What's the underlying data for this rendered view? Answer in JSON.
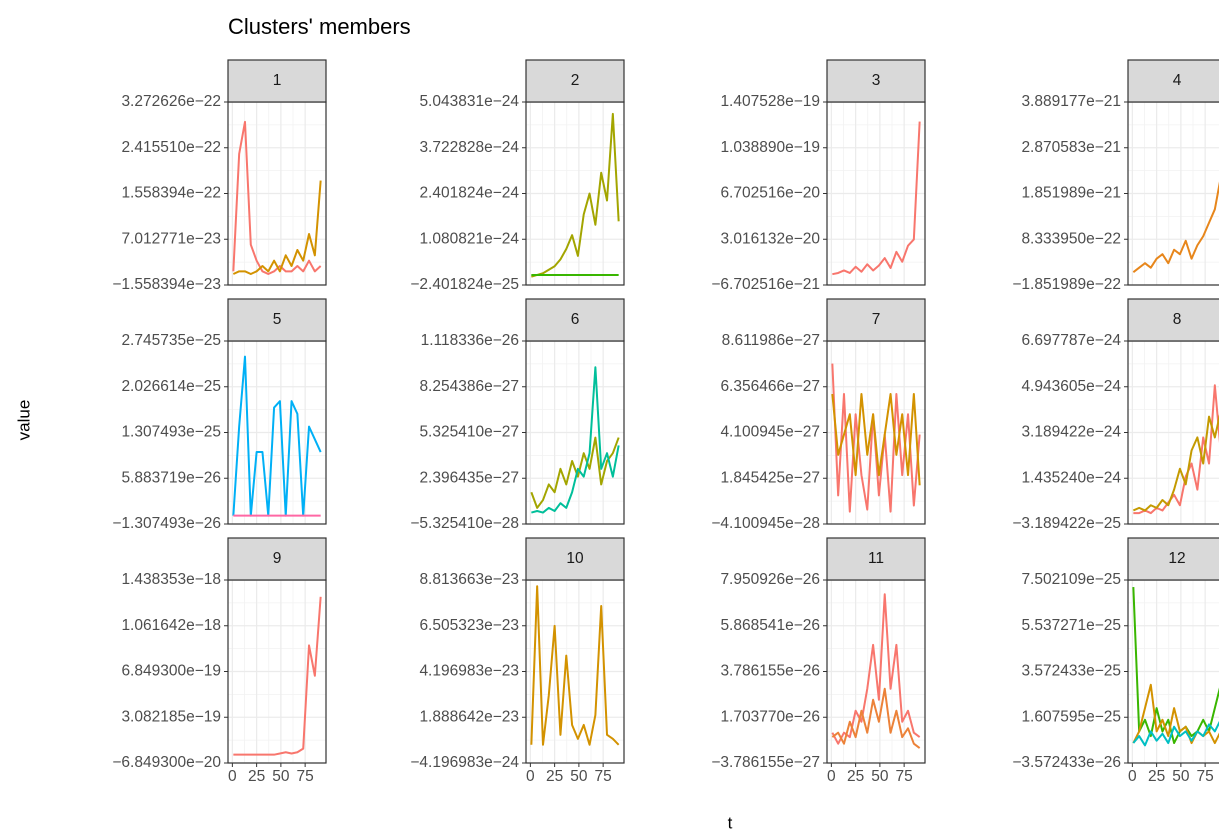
{
  "title": "Clusters' members",
  "x_label": "t",
  "y_label": "value",
  "chart_data": [
    {
      "type": "line",
      "title": "1",
      "x": [
        1,
        7,
        13,
        19,
        25,
        31,
        37,
        43,
        49,
        55,
        61,
        67,
        73,
        79,
        85,
        91
      ],
      "xlim": [
        -4.5,
        96.5
      ],
      "xticks": [
        0,
        25,
        50,
        75
      ],
      "ylim": [
        -1.558394e-23,
        3.272626e-22
      ],
      "yticks": [
        {
          "value": -1.558394e-23,
          "label": "−1.558394e−23"
        },
        {
          "value": 7.012771e-23,
          "label": "7.012771e−23"
        },
        {
          "value": 1.558394e-22,
          "label": "1.558394e−22"
        },
        {
          "value": 2.41551e-22,
          "label": "2.415510e−22"
        },
        {
          "value": 3.272626e-22,
          "label": "3.272626e−22"
        }
      ],
      "series": [
        {
          "color": "#F8766D",
          "values": [
            1e-23,
            2.3e-22,
            2.9e-22,
            6e-23,
            3e-23,
            1e-23,
            5e-24,
            1e-23,
            2e-23,
            1e-23,
            1e-23,
            2e-23,
            1e-23,
            3e-23,
            1e-23,
            2e-23
          ]
        },
        {
          "color": "#D39200",
          "values": [
            5e-24,
            1e-23,
            1e-23,
            5e-24,
            1e-23,
            2e-23,
            1e-23,
            3e-23,
            1e-23,
            4e-23,
            2e-23,
            5e-23,
            3e-23,
            8e-23,
            4e-23,
            1.8e-22
          ]
        }
      ]
    },
    {
      "type": "line",
      "title": "2",
      "x": [
        1,
        7,
        13,
        19,
        25,
        31,
        37,
        43,
        49,
        55,
        61,
        67,
        73,
        79,
        85,
        91
      ],
      "xlim": [
        -4.5,
        96.5
      ],
      "xticks": [
        0,
        25,
        50,
        75
      ],
      "ylim": [
        -2.401824e-25,
        5.043831e-24
      ],
      "yticks": [
        {
          "value": -2.401824e-25,
          "label": "−2.401824e−25"
        },
        {
          "value": 1.080821e-24,
          "label": "1.080821e−24"
        },
        {
          "value": 2.401824e-24,
          "label": "2.401824e−24"
        },
        {
          "value": 3.722828e-24,
          "label": "3.722828e−24"
        },
        {
          "value": 5.043831e-24,
          "label": "5.043831e−24"
        }
      ],
      "series": [
        {
          "color": "#A3A500",
          "values": [
            0,
            5e-26,
            1e-25,
            2e-25,
            3e-25,
            5e-25,
            8e-25,
            1.2e-24,
            6e-25,
            1.8e-24,
            2.4e-24,
            1.5e-24,
            3e-24,
            2.2e-24,
            4.7e-24,
            1.6e-24
          ]
        },
        {
          "color": "#39B600",
          "values": [
            5e-26,
            5e-26,
            5e-26,
            5e-26,
            5e-26,
            5e-26,
            5e-26,
            5e-26,
            5e-26,
            5e-26,
            5e-26,
            5e-26,
            5e-26,
            5e-26,
            5e-26,
            5e-26
          ]
        }
      ]
    },
    {
      "type": "line",
      "title": "3",
      "x": [
        1,
        7,
        13,
        19,
        25,
        31,
        37,
        43,
        49,
        55,
        61,
        67,
        73,
        79,
        85,
        91
      ],
      "xlim": [
        -4.5,
        96.5
      ],
      "xticks": [
        0,
        25,
        50,
        75
      ],
      "ylim": [
        -6.702516e-21,
        1.407528e-19
      ],
      "yticks": [
        {
          "value": -6.702516e-21,
          "label": "−6.702516e−21"
        },
        {
          "value": 3.016132e-20,
          "label": "3.016132e−20"
        },
        {
          "value": 6.702516e-20,
          "label": "6.702516e−20"
        },
        {
          "value": 1.03889e-19,
          "label": "1.038890e−19"
        },
        {
          "value": 1.407528e-19,
          "label": "1.407528e−19"
        }
      ],
      "series": [
        {
          "color": "#F8766D",
          "values": [
            2e-21,
            3e-21,
            5e-21,
            3e-21,
            8e-21,
            4e-21,
            1e-20,
            5e-21,
            9e-21,
            1.5e-20,
            7e-21,
            2e-20,
            1.2e-20,
            2.5e-20,
            3e-20,
            1.25e-19
          ]
        }
      ]
    },
    {
      "type": "line",
      "title": "4",
      "x": [
        1,
        7,
        13,
        19,
        25,
        31,
        37,
        43,
        49,
        55,
        61,
        67,
        73,
        79,
        85,
        91
      ],
      "xlim": [
        -4.5,
        96.5
      ],
      "xticks": [
        0,
        25,
        50,
        75
      ],
      "ylim": [
        -1.851989e-22,
        3.889177e-21
      ],
      "yticks": [
        {
          "value": -1.851989e-22,
          "label": "−1.851989e−22"
        },
        {
          "value": 8.33395e-22,
          "label": "8.333950e−22"
        },
        {
          "value": 1.851989e-21,
          "label": "1.851989e−21"
        },
        {
          "value": 2.870583e-21,
          "label": "2.870583e−21"
        },
        {
          "value": 3.889177e-21,
          "label": "3.889177e−21"
        }
      ],
      "series": [
        {
          "color": "#E7861B",
          "values": [
            1e-22,
            2e-22,
            3e-22,
            2e-22,
            4e-22,
            5e-22,
            3e-22,
            6e-22,
            5e-22,
            8e-22,
            4e-22,
            7e-22,
            9e-22,
            1.2e-21,
            1.5e-21,
            2.2e-21
          ]
        }
      ]
    },
    {
      "type": "line",
      "title": "5",
      "x": [
        1,
        7,
        13,
        19,
        25,
        31,
        37,
        43,
        49,
        55,
        61,
        67,
        73,
        79,
        85,
        91
      ],
      "xlim": [
        -4.5,
        96.5
      ],
      "xticks": [
        0,
        25,
        50,
        75
      ],
      "ylim": [
        -1.307493e-26,
        2.745735e-25
      ],
      "yticks": [
        {
          "value": -1.307493e-26,
          "label": "−1.307493e−26"
        },
        {
          "value": 5.883719e-26,
          "label": "5.883719e−26"
        },
        {
          "value": 1.307493e-25,
          "label": "1.307493e−25"
        },
        {
          "value": 2.026614e-25,
          "label": "2.026614e−25"
        },
        {
          "value": 2.745735e-25,
          "label": "2.745735e−25"
        }
      ],
      "series": [
        {
          "color": "#00B0F6",
          "values": [
            0,
            1.4e-25,
            2.5e-25,
            0,
            1e-25,
            1e-25,
            0,
            1.7e-25,
            1.8e-25,
            0,
            1.8e-25,
            1.6e-25,
            0,
            1.4e-25,
            1.2e-25,
            1e-25
          ]
        },
        {
          "color": "#FF67A4",
          "values": [
            0,
            0,
            0,
            0,
            0,
            0,
            0,
            0,
            0,
            0,
            0,
            0,
            0,
            0,
            0,
            0
          ]
        }
      ]
    },
    {
      "type": "line",
      "title": "6",
      "x": [
        1,
        7,
        13,
        19,
        25,
        31,
        37,
        43,
        49,
        55,
        61,
        67,
        73,
        79,
        85,
        91
      ],
      "xlim": [
        -4.5,
        96.5
      ],
      "xticks": [
        0,
        25,
        50,
        75
      ],
      "ylim": [
        -5.32541e-28,
        1.118336e-26
      ],
      "yticks": [
        {
          "value": -5.32541e-28,
          "label": "−5.325410e−28"
        },
        {
          "value": 2.396435e-27,
          "label": "2.396435e−27"
        },
        {
          "value": 5.32541e-27,
          "label": "5.325410e−27"
        },
        {
          "value": 8.254386e-27,
          "label": "8.254386e−27"
        },
        {
          "value": 1.118336e-26,
          "label": "1.118336e−26"
        }
      ],
      "series": [
        {
          "color": "#A3A500",
          "values": [
            1.5e-27,
            5e-28,
            1e-27,
            2e-27,
            1.5e-27,
            3e-27,
            2e-27,
            3.5e-27,
            2.5e-27,
            4e-27,
            3e-27,
            5e-27,
            2e-27,
            3.5e-27,
            4e-27,
            5e-27
          ]
        },
        {
          "color": "#00BF9A",
          "values": [
            2e-28,
            3e-28,
            2e-28,
            5e-28,
            3e-28,
            8e-28,
            5e-28,
            1.5e-27,
            3e-27,
            2.5e-27,
            4e-27,
            9.5e-27,
            3e-27,
            4e-27,
            2.5e-27,
            4.5e-27
          ]
        }
      ]
    },
    {
      "type": "line",
      "title": "7",
      "x": [
        1,
        7,
        13,
        19,
        25,
        31,
        37,
        43,
        49,
        55,
        61,
        67,
        73,
        79,
        85,
        91
      ],
      "xlim": [
        -4.5,
        96.5
      ],
      "xticks": [
        0,
        25,
        50,
        75
      ],
      "ylim": [
        -4.100945e-28,
        8.611986e-27
      ],
      "yticks": [
        {
          "value": -4.100945e-28,
          "label": "−4.100945e−28"
        },
        {
          "value": 1.845425e-27,
          "label": "1.845425e−27"
        },
        {
          "value": 4.100945e-27,
          "label": "4.100945e−27"
        },
        {
          "value": 6.356466e-27,
          "label": "6.356466e−27"
        },
        {
          "value": 8.611986e-27,
          "label": "8.611986e−27"
        }
      ],
      "series": [
        {
          "color": "#F8766D",
          "values": [
            7.5e-27,
            1e-27,
            6e-27,
            2e-28,
            5e-27,
            2e-27,
            3e-28,
            5e-27,
            1e-27,
            4e-27,
            2e-28,
            6e-27,
            2e-27,
            5e-27,
            5e-28,
            4e-27
          ]
        },
        {
          "color": "#D39200",
          "values": [
            6e-27,
            3e-27,
            4e-27,
            5e-27,
            2e-27,
            6e-27,
            3e-27,
            5e-27,
            2e-27,
            4e-27,
            6e-27,
            3e-27,
            5e-27,
            2e-27,
            6e-27,
            1.5e-27
          ]
        }
      ]
    },
    {
      "type": "line",
      "title": "8",
      "x": [
        1,
        7,
        13,
        19,
        25,
        31,
        37,
        43,
        49,
        55,
        61,
        67,
        73,
        79,
        85,
        91
      ],
      "xlim": [
        -4.5,
        96.5
      ],
      "xticks": [
        0,
        25,
        50,
        75
      ],
      "ylim": [
        -3.189422e-25,
        6.697787e-24
      ],
      "yticks": [
        {
          "value": -3.189422e-25,
          "label": "−3.189422e−25"
        },
        {
          "value": 1.43524e-24,
          "label": "1.435240e−24"
        },
        {
          "value": 3.189422e-24,
          "label": "3.189422e−24"
        },
        {
          "value": 4.943605e-24,
          "label": "4.943605e−24"
        },
        {
          "value": 6.697787e-24,
          "label": "6.697787e−24"
        }
      ],
      "series": [
        {
          "color": "#F8766D",
          "values": [
            1e-25,
            1e-25,
            2e-25,
            1e-25,
            3e-25,
            2e-25,
            5e-25,
            8e-25,
            4e-25,
            1.5e-24,
            2e-24,
            1e-24,
            3e-24,
            2e-24,
            5e-24,
            2.5e-24
          ]
        },
        {
          "color": "#C49A00",
          "values": [
            2e-25,
            3e-25,
            2e-25,
            4e-25,
            3e-25,
            6e-25,
            4e-25,
            1e-24,
            1.8e-24,
            1.2e-24,
            2.5e-24,
            3e-24,
            2e-24,
            3.8e-24,
            3e-24,
            4e-24
          ]
        }
      ]
    },
    {
      "type": "line",
      "title": "9",
      "x": [
        1,
        7,
        13,
        19,
        25,
        31,
        37,
        43,
        49,
        55,
        61,
        67,
        73,
        79,
        85,
        91
      ],
      "xlim": [
        -4.5,
        96.5
      ],
      "xticks": [
        0,
        25,
        50,
        75
      ],
      "ylim": [
        -6.8493e-20,
        1.438353e-18
      ],
      "yticks": [
        {
          "value": -6.8493e-20,
          "label": "−6.849300e−20"
        },
        {
          "value": 3.082185e-19,
          "label": "3.082185e−19"
        },
        {
          "value": 6.8493e-19,
          "label": "6.849300e−19"
        },
        {
          "value": 1.061642e-18,
          "label": "1.061642e−18"
        },
        {
          "value": 1.438353e-18,
          "label": "1.438353e−18"
        }
      ],
      "series": [
        {
          "color": "#F8766D",
          "values": [
            0,
            0,
            0,
            0,
            0,
            0,
            0,
            0,
            1e-20,
            2e-20,
            1e-20,
            2e-20,
            5e-20,
            9e-19,
            6.5e-19,
            1.3e-18
          ]
        }
      ]
    },
    {
      "type": "line",
      "title": "10",
      "x": [
        1,
        7,
        13,
        19,
        25,
        31,
        37,
        43,
        49,
        55,
        61,
        67,
        73,
        79,
        85,
        91
      ],
      "xlim": [
        -4.5,
        96.5
      ],
      "xticks": [
        0,
        25,
        50,
        75
      ],
      "ylim": [
        -4.196983e-24,
        8.813663e-23
      ],
      "yticks": [
        {
          "value": -4.196983e-24,
          "label": "−4.196983e−24"
        },
        {
          "value": 1.888642e-23,
          "label": "1.888642e−23"
        },
        {
          "value": 4.196983e-23,
          "label": "4.196983e−23"
        },
        {
          "value": 6.505323e-23,
          "label": "6.505323e−23"
        },
        {
          "value": 8.813663e-23,
          "label": "8.813663e−23"
        }
      ],
      "series": [
        {
          "color": "#D39200",
          "values": [
            5e-24,
            8.5e-23,
            5e-24,
            3e-23,
            6.5e-23,
            1e-23,
            5e-23,
            1.5e-23,
            8e-24,
            1.5e-23,
            5e-24,
            2e-23,
            7.5e-23,
            1e-23,
            8e-24,
            5e-24
          ]
        }
      ]
    },
    {
      "type": "line",
      "title": "11",
      "x": [
        1,
        7,
        13,
        19,
        25,
        31,
        37,
        43,
        49,
        55,
        61,
        67,
        73,
        79,
        85,
        91
      ],
      "xlim": [
        -4.5,
        96.5
      ],
      "xticks": [
        0,
        25,
        50,
        75
      ],
      "ylim": [
        -3.786155e-27,
        7.950926e-26
      ],
      "yticks": [
        {
          "value": -3.786155e-27,
          "label": "−3.786155e−27"
        },
        {
          "value": 1.70377e-26,
          "label": "1.703770e−26"
        },
        {
          "value": 3.786155e-26,
          "label": "3.786155e−26"
        },
        {
          "value": 5.868541e-26,
          "label": "5.868541e−26"
        },
        {
          "value": 7.950926e-26,
          "label": "7.950926e−26"
        }
      ],
      "series": [
        {
          "color": "#F8766D",
          "values": [
            1e-26,
            5e-27,
            1e-26,
            8e-27,
            2e-26,
            1.5e-26,
            3e-26,
            5e-26,
            2.5e-26,
            7.3e-26,
            3e-26,
            5e-26,
            1.5e-26,
            2e-26,
            1e-26,
            8e-27
          ]
        },
        {
          "color": "#EC8239",
          "values": [
            8e-27,
            1e-26,
            5e-27,
            1.5e-26,
            8e-27,
            2e-26,
            1e-26,
            2.5e-26,
            1.5e-26,
            3e-26,
            1e-26,
            2e-26,
            8e-27,
            1.2e-26,
            5e-27,
            3e-27
          ]
        }
      ]
    },
    {
      "type": "line",
      "title": "12",
      "x": [
        1,
        7,
        13,
        19,
        25,
        31,
        37,
        43,
        49,
        55,
        61,
        67,
        73,
        79,
        85,
        91
      ],
      "xlim": [
        -4.5,
        96.5
      ],
      "xticks": [
        0,
        25,
        50,
        75
      ],
      "ylim": [
        -3.572433e-26,
        7.502109e-25
      ],
      "yticks": [
        {
          "value": -3.572433e-26,
          "label": "−3.572433e−26"
        },
        {
          "value": 1.607595e-25,
          "label": "1.607595e−25"
        },
        {
          "value": 3.572433e-25,
          "label": "3.572433e−25"
        },
        {
          "value": 5.537271e-25,
          "label": "5.537271e−25"
        },
        {
          "value": 7.502109e-25,
          "label": "7.502109e−25"
        }
      ],
      "series": [
        {
          "color": "#39B600",
          "values": [
            7.2e-25,
            1e-25,
            1.5e-25,
            8e-26,
            2e-25,
            1e-25,
            1.5e-25,
            5e-26,
            1e-25,
            1.2e-25,
            8e-26,
            1e-25,
            1.5e-25,
            1e-25,
            2e-25,
            3e-25
          ]
        },
        {
          "color": "#D39200",
          "values": [
            5e-26,
            1e-25,
            2e-25,
            3e-25,
            1e-25,
            1.5e-25,
            8e-26,
            2e-25,
            1e-25,
            1.2e-25,
            5e-26,
            1e-25,
            8e-26,
            1e-25,
            5e-26,
            1e-25
          ]
        },
        {
          "color": "#00BFC4",
          "values": [
            5e-26,
            8e-26,
            4e-26,
            1e-25,
            6e-26,
            9e-26,
            5e-26,
            1.2e-25,
            8e-26,
            1e-25,
            6e-26,
            1e-25,
            8e-26,
            1.3e-25,
            1e-25,
            1.5e-25
          ]
        }
      ]
    }
  ]
}
